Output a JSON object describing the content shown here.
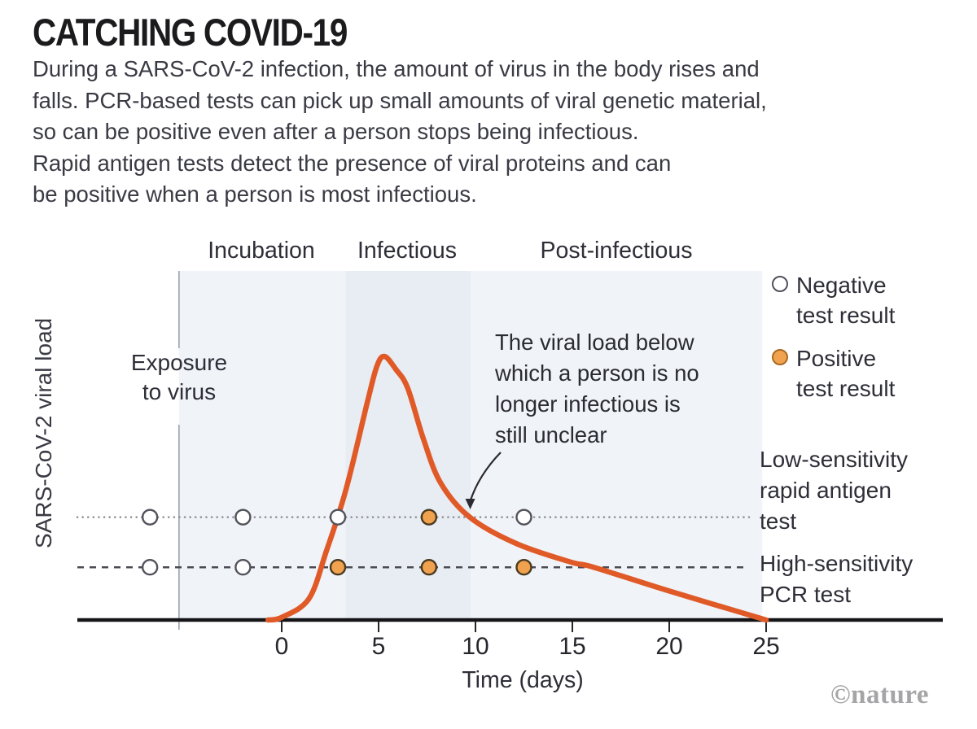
{
  "header": {
    "title": "CATCHING COVID-19",
    "intro": "During a SARS-CoV-2 infection, the amount of virus in the body rises and\nfalls. PCR-based tests can pick up small amounts of viral genetic material,\nso can be positive even after a person stops being infectious.\nRapid antigen tests detect the presence of viral proteins and can\nbe positive when a person is most infectious."
  },
  "chart_data": {
    "type": "line",
    "xlabel": "Time (days)",
    "ylabel": "SARS-CoV-2 viral load",
    "x_ticks": [
      0,
      5,
      10,
      15,
      20,
      25
    ],
    "grid": false,
    "phases": [
      {
        "label": "Incubation",
        "start_day": -5.3,
        "end_day": 3.3
      },
      {
        "label": "Infectious",
        "start_day": 3.3,
        "end_day": 9.75
      },
      {
        "label": "Post-infectious",
        "start_day": 9.75,
        "end_day": 24.8
      }
    ],
    "exposure": {
      "label": "Exposure\nto virus",
      "day": -5.3
    },
    "curve": {
      "name": "SARS-CoV-2 viral load",
      "unit": "relative level 0-1 (axis unlabelled)",
      "points_day_level": [
        [
          -0.7,
          0
        ],
        [
          0,
          0.01
        ],
        [
          1.4,
          0.08
        ],
        [
          2.3,
          0.26
        ],
        [
          3.3,
          0.49
        ],
        [
          4.4,
          0.82
        ],
        [
          4.9,
          0.96
        ],
        [
          5.3,
          1.0
        ],
        [
          5.9,
          0.95
        ],
        [
          6.5,
          0.88
        ],
        [
          7.3,
          0.69
        ],
        [
          8.2,
          0.52
        ],
        [
          9.7,
          0.39
        ],
        [
          12.1,
          0.29
        ],
        [
          14.9,
          0.22
        ],
        [
          16.1,
          0.2
        ],
        [
          20,
          0.11
        ],
        [
          25,
          0
        ]
      ]
    },
    "thresholds": [
      {
        "id": "antigen",
        "label": "Low-sensitivity\nrapid antigen\ntest",
        "level": 0.39,
        "line_style": "dotted"
      },
      {
        "id": "pcr",
        "label": "High-sensitivity\nPCR test",
        "level": 0.2,
        "line_style": "dashed"
      }
    ],
    "test_days": [
      -6.8,
      -2,
      2.9,
      7.6,
      12.5
    ],
    "test_results": {
      "rapid_antigen": [
        "negative",
        "negative",
        "negative",
        "positive",
        "negative"
      ],
      "pcr": [
        "negative",
        "negative",
        "positive",
        "positive",
        "positive"
      ]
    },
    "legend": [
      {
        "label": "Negative\ntest result",
        "marker": "open-circle"
      },
      {
        "label": "Positive\ntest result",
        "marker": "filled-circle"
      }
    ],
    "annotation": {
      "text": "The viral load below\nwhich a person is no\nlonger infectious is\nstill unclear",
      "points_to_day": 9.75
    },
    "colors": {
      "curve": "#e05a28",
      "positive_fill": "#f0a24f",
      "positive_stroke": "#4a3a20",
      "negative_fill": "#ffffff",
      "negative_stroke": "#52525c",
      "plot_bg": "#f0f3f8",
      "infectious_shade": "#e8ecf3",
      "dotted_line": "#8d8d95",
      "dashed_line": "#4c4c54",
      "axis": "#151517",
      "exposure_line": "#9aa3b2",
      "arrow": "#2b2b31"
    }
  },
  "footer": {
    "watermark": "©nature"
  }
}
